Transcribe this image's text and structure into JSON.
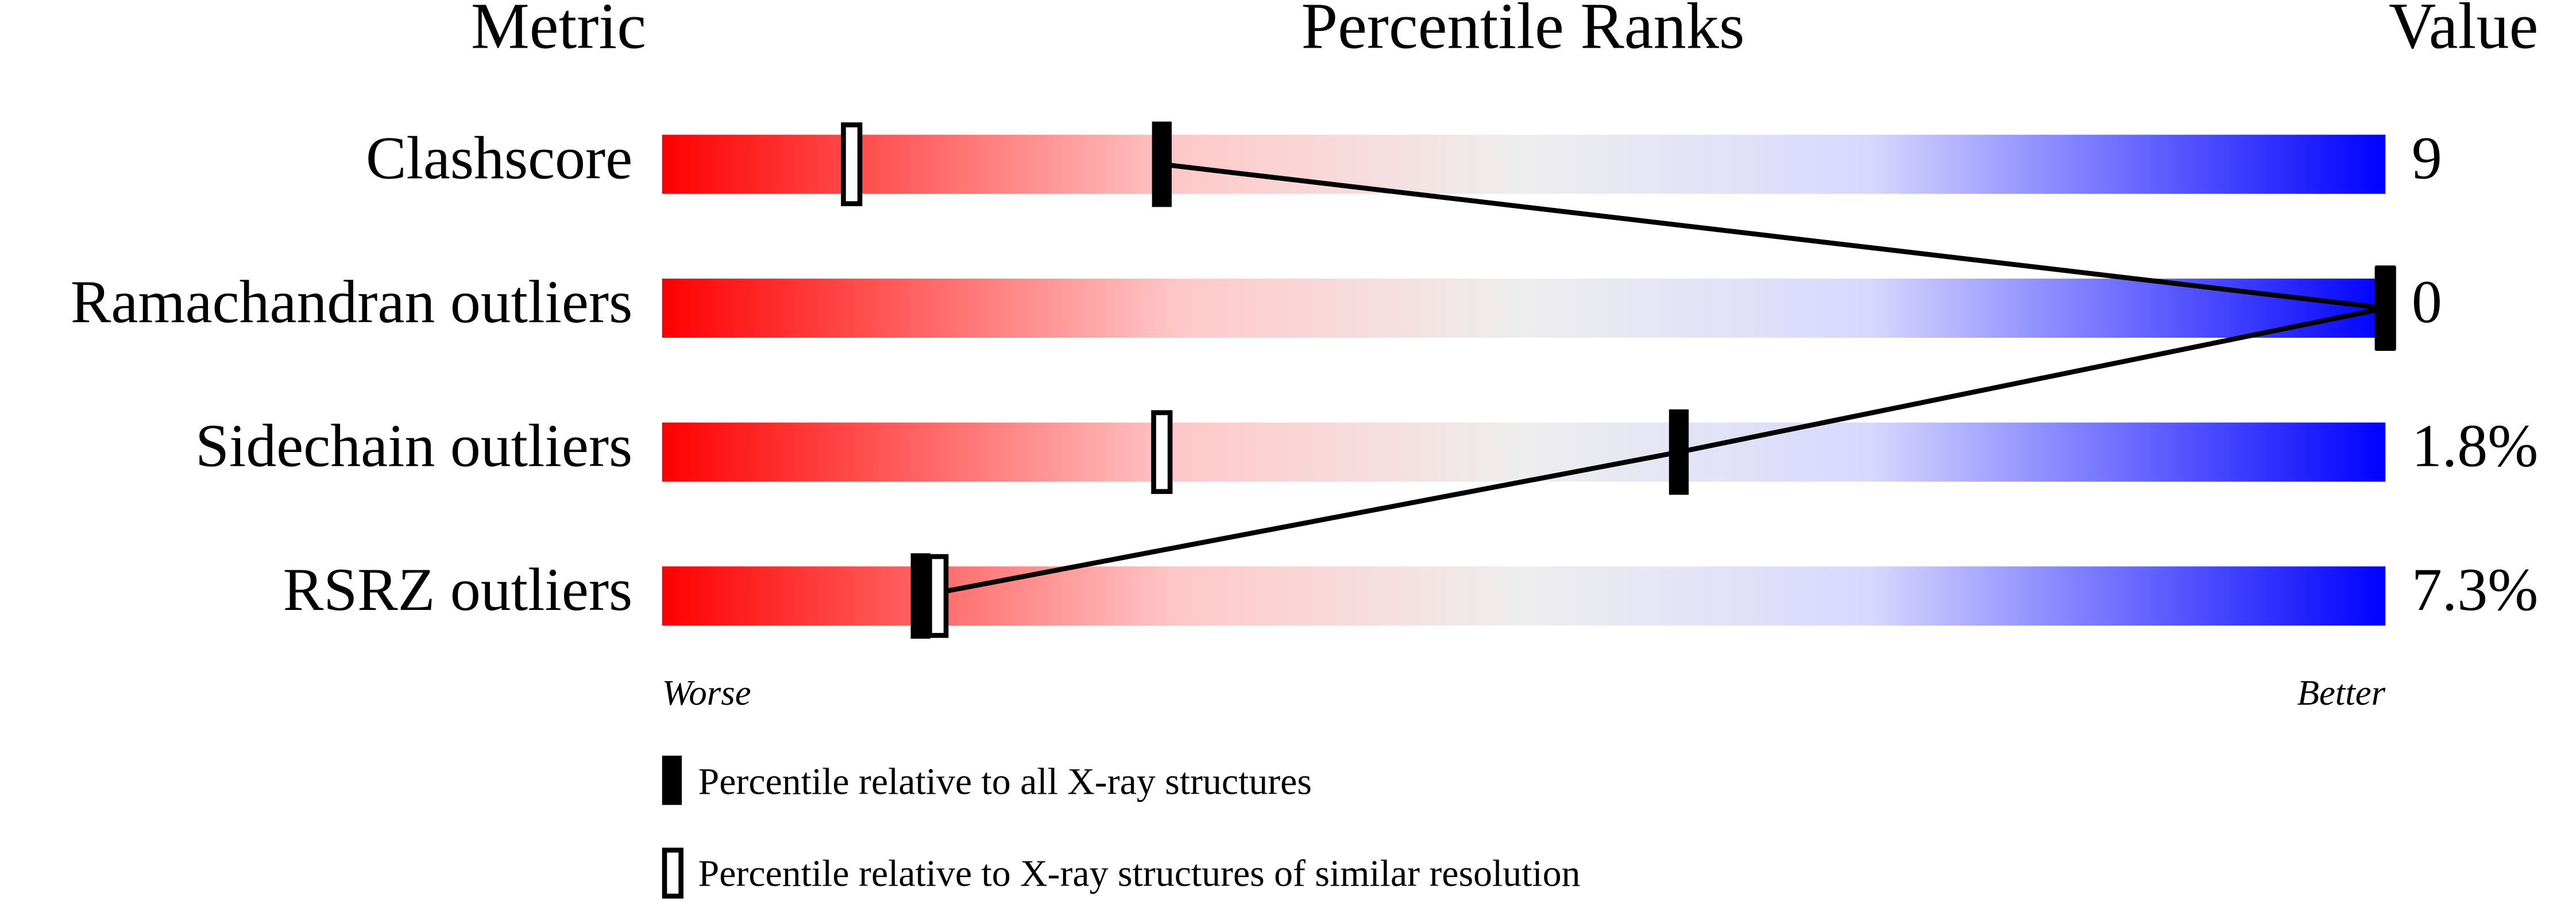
{
  "chart_data": {
    "type": "percentile",
    "headers": {
      "metric": "Metric",
      "ranks": "Percentile Ranks",
      "value": "Value"
    },
    "categories": [
      "Clashscore",
      "Ramachandran outliers",
      "Sidechain outliers",
      "RSRZ outliers"
    ],
    "value_texts": [
      "9",
      "0",
      "1.8%",
      "7.3%"
    ],
    "series": [
      {
        "name": "Percentile relative to all X-ray structures",
        "color": "#000000",
        "filled": true,
        "values": [
          29,
          100,
          59,
          15
        ]
      },
      {
        "name": "Percentile relative to X-ray structures of similar resolution",
        "color": "#000000",
        "filled": false,
        "values": [
          11,
          100,
          29,
          16
        ]
      }
    ],
    "xlim": [
      0,
      100
    ],
    "axis_labels": {
      "low": "Worse",
      "high": "Better"
    }
  }
}
